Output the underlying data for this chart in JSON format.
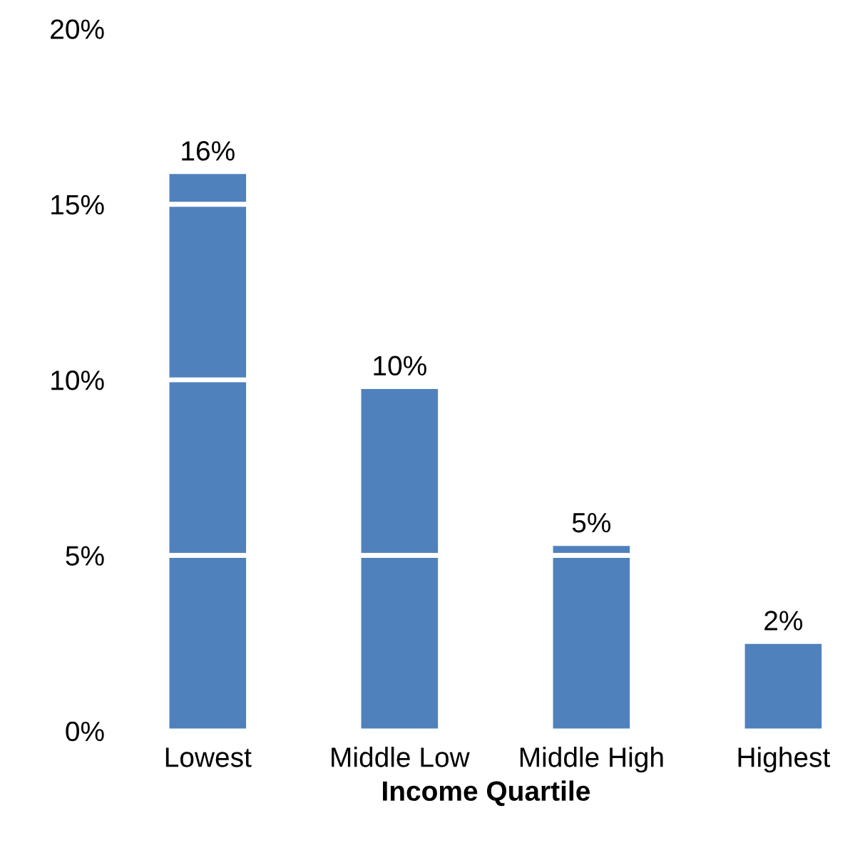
{
  "chart_data": {
    "type": "bar",
    "xlabel": "Income Quartile",
    "categories": [
      "Lowest",
      "Middle Low",
      "Middle High",
      "Highest"
    ],
    "values": [
      15.86,
      9.74,
      5.27,
      2.48
    ],
    "value_labels": [
      "16%",
      "10%",
      "5%",
      "2%"
    ],
    "color": "#4f81bd",
    "ylim": [
      0,
      20
    ],
    "yticks": [
      {
        "value": 0,
        "label": "0%"
      },
      {
        "value": 5,
        "label": "5%"
      },
      {
        "value": 10,
        "label": "10%"
      },
      {
        "value": 15,
        "label": "15%"
      },
      {
        "value": 20,
        "label": "20%"
      }
    ],
    "grid": "y"
  }
}
